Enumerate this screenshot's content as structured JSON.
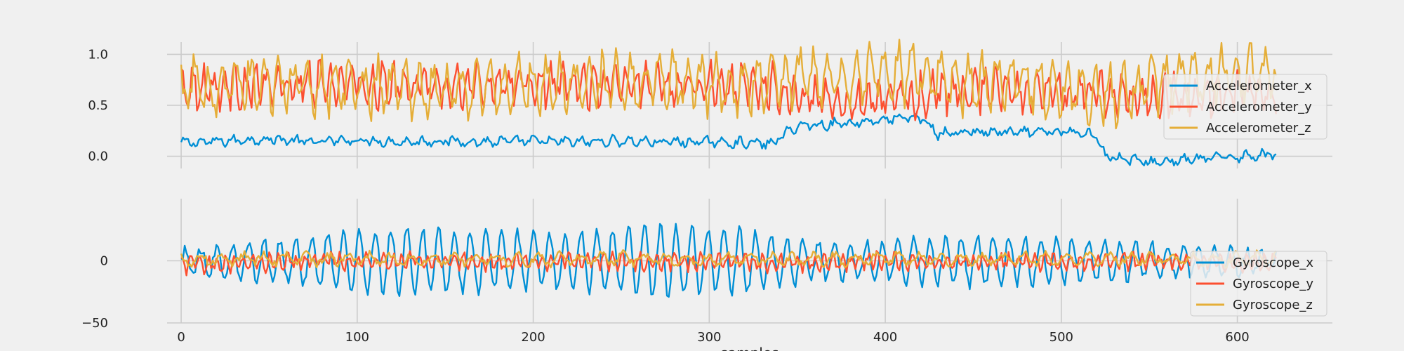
{
  "chart_data": [
    {
      "type": "line",
      "title": "",
      "xlabel": "",
      "ylabel": "",
      "xlim": [
        -8,
        654
      ],
      "ylim": [
        -0.12,
        1.12
      ],
      "x_ticks": [
        0,
        100,
        200,
        300,
        400,
        500,
        600
      ],
      "y_ticks": [
        0.0,
        0.5,
        1.0
      ],
      "y_tick_labels": [
        "0.0",
        "0.5",
        "1.0"
      ],
      "grid": true,
      "legend_position": "right",
      "x": [
        0,
        25,
        50,
        75,
        100,
        125,
        150,
        175,
        200,
        225,
        250,
        275,
        300,
        325,
        335,
        350,
        375,
        400,
        420,
        430,
        450,
        475,
        500,
        520,
        525,
        550,
        575,
        600,
        620
      ],
      "series": [
        {
          "name": "Accelerometer_x",
          "color": "#008fd5",
          "noise": 0.035,
          "period": 9,
          "amp": 0.03,
          "values": [
            0.13,
            0.15,
            0.17,
            0.14,
            0.16,
            0.14,
            0.15,
            0.14,
            0.15,
            0.14,
            0.15,
            0.14,
            0.14,
            0.13,
            0.12,
            0.3,
            0.32,
            0.36,
            0.38,
            0.22,
            0.24,
            0.23,
            0.24,
            0.22,
            0.0,
            -0.06,
            -0.03,
            0.0,
            0.02
          ]
        },
        {
          "name": "Accelerometer_y",
          "color": "#fc4f30",
          "noise": 0.12,
          "period": 6,
          "amp": 0.15,
          "values": [
            0.7,
            0.68,
            0.69,
            0.7,
            0.7,
            0.69,
            0.7,
            0.71,
            0.7,
            0.69,
            0.7,
            0.71,
            0.7,
            0.7,
            0.7,
            0.58,
            0.55,
            0.56,
            0.6,
            0.63,
            0.65,
            0.66,
            0.62,
            0.6,
            0.6,
            0.58,
            0.6,
            0.62,
            0.62
          ]
        },
        {
          "name": "Accelerometer_z",
          "color": "#e5ae38",
          "noise": 0.14,
          "period": 8,
          "amp": 0.22,
          "values": [
            0.66,
            0.7,
            0.72,
            0.7,
            0.68,
            0.68,
            0.66,
            0.68,
            0.7,
            0.7,
            0.72,
            0.74,
            0.7,
            0.72,
            0.75,
            0.78,
            0.78,
            0.82,
            0.8,
            0.72,
            0.7,
            0.74,
            0.68,
            0.6,
            0.58,
            0.7,
            0.78,
            0.8,
            0.8
          ]
        }
      ]
    },
    {
      "type": "line",
      "title": "",
      "xlabel": "samples",
      "ylabel": "",
      "xlim": [
        -8,
        654
      ],
      "ylim": [
        -50,
        50
      ],
      "x_ticks": [
        0,
        100,
        200,
        300,
        400,
        500,
        600
      ],
      "x_tick_labels": [
        "0",
        "100",
        "200",
        "300",
        "400",
        "500",
        "600"
      ],
      "y_ticks": [
        -50,
        0
      ],
      "y_tick_labels": [
        "−50",
        "0"
      ],
      "grid": true,
      "legend_position": "lower right",
      "x": [
        0,
        25,
        50,
        75,
        100,
        125,
        150,
        175,
        200,
        225,
        250,
        275,
        300,
        325,
        350,
        375,
        400,
        425,
        450,
        475,
        500,
        525,
        550,
        575,
        600,
        620
      ],
      "series": [
        {
          "name": "Gyroscope_x",
          "color": "#008fd5",
          "noise": 4,
          "period": 9,
          "amp": [
            8,
            12,
            16,
            20,
            24,
            26,
            25,
            24,
            22,
            24,
            26,
            28,
            26,
            24,
            18,
            14,
            16,
            18,
            20,
            18,
            18,
            16,
            14,
            12,
            10,
            6
          ],
          "values": [
            0,
            0,
            0,
            0,
            0,
            0,
            0,
            0,
            0,
            0,
            0,
            0,
            0,
            0,
            0,
            0,
            0,
            0,
            0,
            0,
            0,
            0,
            0,
            0,
            0,
            0
          ]
        },
        {
          "name": "Gyroscope_y",
          "color": "#fc4f30",
          "noise": 4,
          "period": 5,
          "amp": 5,
          "values": [
            -3,
            -2,
            -1,
            0,
            -1,
            0,
            0,
            -1,
            0,
            -1,
            0,
            -1,
            0,
            -1,
            -2,
            -1,
            0,
            -1,
            -1,
            0,
            -1,
            -1,
            0,
            -1,
            -2,
            0
          ]
        },
        {
          "name": "Gyroscope_z",
          "color": "#e5ae38",
          "noise": 3,
          "period": 12,
          "amp": 4,
          "values": [
            1,
            1,
            2,
            1,
            2,
            1,
            1,
            2,
            1,
            1,
            2,
            1,
            1,
            2,
            1,
            1,
            2,
            1,
            1,
            2,
            1,
            1,
            2,
            1,
            1,
            2
          ]
        }
      ]
    }
  ]
}
